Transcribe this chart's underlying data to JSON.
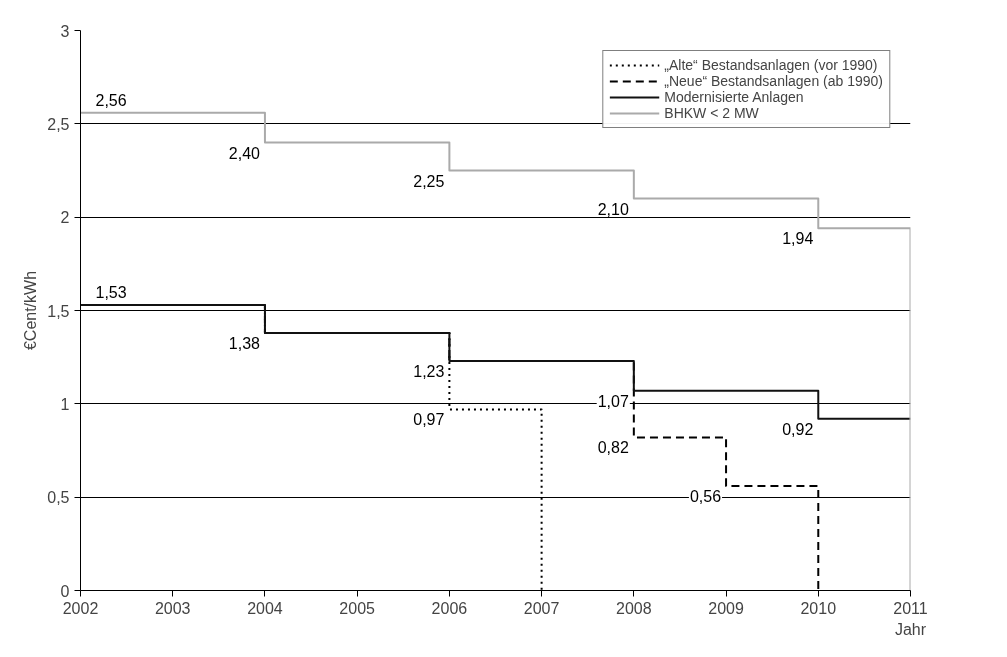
{
  "chart_data": {
    "type": "step",
    "xlabel": "Jahr",
    "ylabel": "€Cent/kWh",
    "xlim": [
      2002,
      2011
    ],
    "xticks": [
      2002,
      2003,
      2004,
      2005,
      2006,
      2007,
      2008,
      2009,
      2010,
      2011
    ],
    "ylim": [
      0,
      3
    ],
    "yticks": [
      0,
      {
        "value": 0.5,
        "label": "0,5"
      },
      1,
      {
        "value": 1.5,
        "label": "1,5"
      },
      2,
      {
        "value": 2.5,
        "label": "2,5"
      },
      3
    ],
    "grid": "y",
    "legend": "top right",
    "series": [
      {
        "name": "„Alte“ Bestandsanlagen (vor 1990)",
        "color": "#000000",
        "line_style": "dotted",
        "x": [
          2002,
          2004,
          2006,
          2007
        ],
        "values": [
          1.53,
          1.38,
          0.97,
          0
        ]
      },
      {
        "name": "„Neue“ Bestandsanlagen (ab 1990)",
        "color": "#000000",
        "line_style": "dashed",
        "x": [
          2002,
          2004,
          2006,
          2008,
          2009,
          2010
        ],
        "values": [
          1.53,
          1.38,
          1.23,
          0.82,
          0.56,
          0
        ]
      },
      {
        "name": "Modernisierte Anlagen",
        "color": "#111111",
        "line_style": "solid",
        "x": [
          2002,
          2004,
          2006,
          2008,
          2010,
          2011
        ],
        "values": [
          1.53,
          1.38,
          1.23,
          1.07,
          0.92,
          0.92
        ]
      },
      {
        "name": "BHKW < 2 MW",
        "color": "#aaaaaa",
        "line_style": "solid",
        "x": [
          2002,
          2004,
          2006,
          2008,
          2010,
          2011
        ],
        "values": [
          2.56,
          2.4,
          2.25,
          2.1,
          1.94,
          0
        ]
      }
    ],
    "annotations": [
      {
        "text": "2,56",
        "x": 2002,
        "y": 2.56
      },
      {
        "text": "2,40",
        "x": 2004,
        "y": 2.4
      },
      {
        "text": "2,25",
        "x": 2006,
        "y": 2.25
      },
      {
        "text": "2,10",
        "x": 2008,
        "y": 2.1
      },
      {
        "text": "1,94",
        "x": 2010,
        "y": 1.94
      },
      {
        "text": "1,53",
        "x": 2002,
        "y": 1.53
      },
      {
        "text": "1,38",
        "x": 2004,
        "y": 1.38
      },
      {
        "text": "1,23",
        "x": 2006,
        "y": 1.23
      },
      {
        "text": "0,97",
        "x": 2006,
        "y": 0.97
      },
      {
        "text": "1,07",
        "x": 2008,
        "y": 1.07
      },
      {
        "text": "0,82",
        "x": 2008,
        "y": 0.82
      },
      {
        "text": "0,56",
        "x": 2009,
        "y": 0.56
      },
      {
        "text": "0,92",
        "x": 2010,
        "y": 0.92
      }
    ]
  }
}
